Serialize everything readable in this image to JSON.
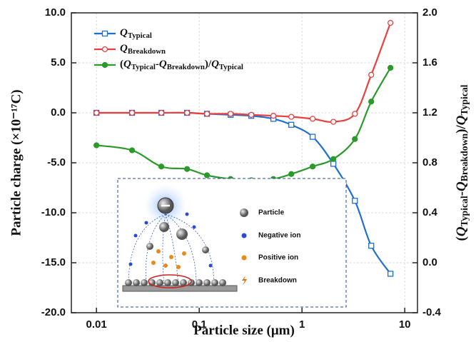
{
  "chart_data": {
    "type": "line",
    "x_label": "Particle size (μm)",
    "y_label": "Particle charge (×10⁻¹⁷C)",
    "y2_label": "(QTypical-QBreakdown)/QTypical",
    "x": [
      0.01,
      0.0222,
      0.0428,
      0.0762,
      0.119,
      0.202,
      0.321,
      0.527,
      0.787,
      1.27,
      2.02,
      3.27,
      4.72,
      7.26
    ],
    "xlim": [
      0.0057,
      13.3
    ],
    "xticks": [
      0.01,
      0.1,
      1,
      10
    ],
    "log_x": true,
    "ylim": [
      -20,
      10
    ],
    "yticks": [
      {
        "value": -20,
        "label": "-20.0"
      },
      {
        "value": -15,
        "label": "-15.0"
      },
      {
        "value": -10,
        "label": "-10.0"
      },
      {
        "value": -5,
        "label": "-5.0"
      },
      {
        "value": 0,
        "label": "0.0"
      },
      {
        "value": 5,
        "label": "5.0"
      },
      {
        "value": 10,
        "label": "10.0"
      }
    ],
    "y2lim": [
      -0.4,
      2.0
    ],
    "y2ticks": [
      {
        "value": -0.4,
        "label": "-0.4"
      },
      {
        "value": 0,
        "label": "0.0"
      },
      {
        "value": 0.4,
        "label": "0.4"
      },
      {
        "value": 0.8,
        "label": "0.8"
      },
      {
        "value": 1.2,
        "label": "1.2"
      },
      {
        "value": 1.6,
        "label": "1.6"
      },
      {
        "value": 2.0,
        "label": "2.0"
      }
    ],
    "grid": true,
    "legend": "upper left",
    "series": [
      {
        "name": "QTypical",
        "color": "#1f6fd0",
        "marker": "square",
        "values": [
          0,
          0,
          0,
          0,
          -0.1,
          -0.2,
          -0.3,
          -0.6,
          -1.2,
          -2.4,
          -5.1,
          -8.8,
          -13.3,
          -16.1
        ]
      },
      {
        "name": "QBreakdown",
        "color": "#e8413f",
        "marker": "circle-open",
        "values": [
          0,
          0,
          0,
          0,
          -0.1,
          -0.1,
          -0.2,
          -0.3,
          -0.4,
          -0.6,
          -0.9,
          -0.1,
          3.8,
          9.0
        ]
      },
      {
        "name": "(QTypical-QBreakdown)/QTypical",
        "color": "#2a9a2a",
        "marker": "circle",
        "axis": "y2",
        "values": [
          0.94,
          0.9,
          0.77,
          0.75,
          0.7,
          0.67,
          0.66,
          0.67,
          0.71,
          0.77,
          0.83,
          0.99,
          1.29,
          1.56
        ]
      }
    ],
    "inset_labels": [
      "Particle",
      "Negative ion",
      "Positive ion",
      "Breakdown"
    ]
  }
}
